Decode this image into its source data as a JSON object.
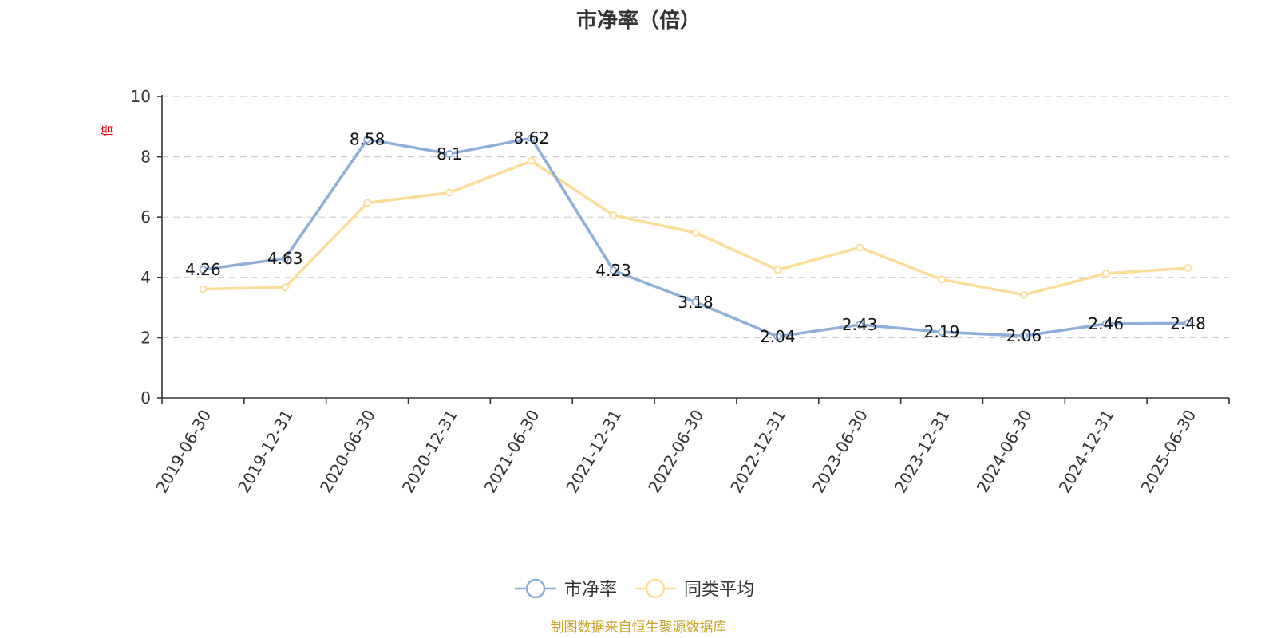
{
  "chart_data": {
    "type": "line",
    "title": "市净率（倍）",
    "ylabel": "倍",
    "xlabel": "",
    "categories": [
      "2019-06-30",
      "2019-12-31",
      "2020-06-30",
      "2020-12-31",
      "2021-06-30",
      "2021-12-31",
      "2022-06-30",
      "2022-12-31",
      "2023-06-30",
      "2023-12-31",
      "2024-06-30",
      "2024-12-31",
      "2025-06-30"
    ],
    "ylim": [
      0,
      10
    ],
    "yticks": [
      0,
      2,
      4,
      6,
      8,
      10
    ],
    "grid": true,
    "legend_position": "bottom-center",
    "series": [
      {
        "name": "市净率",
        "color": "#8eaedb",
        "values": [
          4.26,
          4.63,
          8.58,
          8.1,
          8.62,
          4.23,
          3.18,
          2.04,
          2.43,
          2.19,
          2.06,
          2.46,
          2.48
        ],
        "labels": [
          "4.26",
          "4.63",
          "8.58",
          "8.1",
          "8.62",
          "4.23",
          "3.18",
          "2.04",
          "2.43",
          "2.19",
          "2.06",
          "2.46",
          "2.48"
        ]
      },
      {
        "name": "同类平均",
        "color": "#fddc98",
        "values": [
          3.61,
          3.67,
          6.47,
          6.81,
          7.86,
          6.06,
          5.48,
          4.25,
          4.99,
          3.93,
          3.42,
          4.13,
          4.31
        ]
      }
    ]
  },
  "source_text": "制图数据来自恒生聚源数据库"
}
